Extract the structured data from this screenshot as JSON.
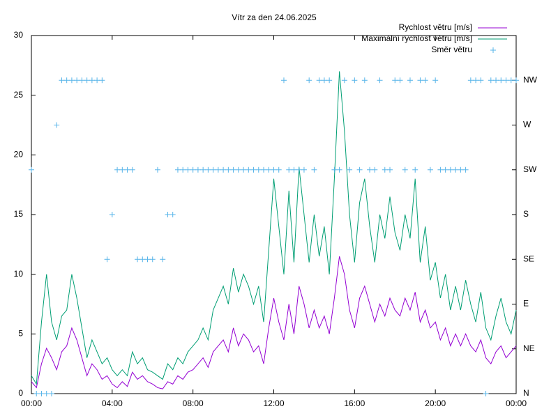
{
  "chart_data": {
    "type": "line",
    "title": "Vítr za den 24.06.2025",
    "x": [
      0,
      0.25,
      0.5,
      0.75,
      1,
      1.25,
      1.5,
      1.75,
      2,
      2.25,
      2.5,
      2.75,
      3,
      3.25,
      3.5,
      3.75,
      4,
      4.25,
      4.5,
      4.75,
      5,
      5.25,
      5.5,
      5.75,
      6,
      6.25,
      6.5,
      6.75,
      7,
      7.25,
      7.5,
      7.75,
      8,
      8.25,
      8.5,
      8.75,
      9,
      9.25,
      9.5,
      9.75,
      10,
      10.25,
      10.5,
      10.75,
      11,
      11.25,
      11.5,
      11.75,
      12,
      12.25,
      12.5,
      12.75,
      13,
      13.25,
      13.5,
      13.75,
      14,
      14.25,
      14.5,
      14.75,
      15,
      15.25,
      15.5,
      15.75,
      16,
      16.25,
      16.5,
      16.75,
      17,
      17.25,
      17.5,
      17.75,
      18,
      18.25,
      18.5,
      18.75,
      19,
      19.25,
      19.5,
      19.75,
      20,
      20.25,
      20.5,
      20.75,
      21,
      21.25,
      21.5,
      21.75,
      22,
      22.25,
      22.5,
      22.75,
      23,
      23.25,
      23.5,
      23.75,
      24
    ],
    "series": [
      {
        "name": "Rychlost větru [m/s]",
        "color": "#9400d3",
        "values": [
          1.0,
          0.5,
          2.5,
          3.8,
          3.0,
          2.0,
          3.5,
          4.0,
          5.5,
          4.5,
          3.0,
          1.5,
          2.5,
          2.0,
          1.2,
          1.5,
          0.8,
          0.5,
          1.0,
          0.6,
          1.8,
          1.2,
          1.5,
          1.0,
          0.8,
          0.5,
          0.4,
          1.0,
          0.8,
          1.5,
          1.2,
          1.8,
          2.0,
          2.5,
          3.0,
          2.2,
          3.5,
          4.0,
          4.5,
          3.5,
          5.5,
          4.0,
          5.0,
          4.5,
          3.5,
          4.0,
          2.5,
          5.5,
          8.0,
          6.0,
          4.5,
          7.5,
          5.0,
          9.0,
          7.5,
          5.5,
          7.0,
          5.5,
          6.5,
          5.0,
          8.0,
          11.5,
          10.0,
          7.0,
          5.5,
          8.0,
          9.0,
          7.5,
          6.0,
          7.5,
          6.5,
          8.0,
          7.0,
          6.5,
          8.0,
          7.0,
          8.5,
          6.0,
          7.0,
          5.5,
          6.0,
          4.5,
          5.5,
          4.0,
          5.0,
          4.0,
          5.0,
          4.0,
          3.5,
          4.5,
          3.0,
          2.5,
          3.5,
          4.0,
          3.0,
          3.5,
          4.0
        ]
      },
      {
        "name": "Maximální rychlost větru [m/s]",
        "color": "#009e73",
        "values": [
          1.5,
          0.8,
          6.0,
          10.0,
          6.0,
          4.5,
          6.5,
          7.0,
          10.0,
          8.0,
          5.5,
          3.0,
          4.5,
          3.5,
          2.5,
          3.0,
          2.0,
          1.5,
          2.0,
          1.5,
          3.5,
          2.5,
          3.0,
          2.0,
          1.8,
          1.5,
          1.2,
          2.5,
          2.0,
          3.0,
          2.5,
          3.5,
          4.0,
          4.5,
          5.5,
          4.5,
          7.0,
          8.0,
          9.0,
          7.5,
          10.5,
          8.5,
          10.0,
          9.0,
          7.5,
          9.0,
          6.0,
          12.0,
          18.0,
          14.0,
          10.0,
          17.0,
          11.0,
          19.0,
          15.0,
          11.0,
          15.0,
          11.5,
          14.0,
          10.0,
          18.0,
          27.0,
          22.0,
          15.0,
          11.0,
          16.0,
          18.0,
          14.0,
          11.0,
          15.0,
          13.0,
          16.5,
          13.5,
          12.0,
          15.0,
          13.0,
          18.0,
          11.0,
          14.0,
          9.5,
          11.0,
          8.0,
          10.0,
          7.0,
          9.0,
          7.0,
          9.5,
          7.5,
          6.0,
          8.5,
          5.5,
          4.5,
          6.5,
          8.0,
          6.0,
          5.0,
          7.0
        ]
      },
      {
        "name": "Směr větru",
        "color": "#56b4e9",
        "type": "scatter",
        "axis": "y2",
        "values": [
          5,
          0,
          0,
          0,
          0,
          6,
          7,
          7,
          7,
          7,
          7,
          7,
          7,
          7,
          7,
          3,
          4,
          5,
          5,
          5,
          5,
          3,
          3,
          3,
          3,
          5,
          3,
          4,
          4,
          5,
          5,
          5,
          5,
          5,
          5,
          5,
          5,
          5,
          5,
          5,
          5,
          5,
          5,
          5,
          5,
          5,
          5,
          5,
          5,
          5,
          7,
          5,
          5,
          5,
          5,
          7,
          5,
          7,
          7,
          7,
          5,
          5,
          7,
          5,
          7,
          5,
          7,
          5,
          5,
          7,
          5,
          5,
          7,
          7,
          5,
          7,
          5,
          7,
          7,
          5,
          7,
          5,
          5,
          5,
          5,
          5,
          5,
          7,
          7,
          7,
          0,
          7,
          7,
          7,
          7,
          7,
          7
        ]
      }
    ],
    "xlim": [
      0,
      24
    ],
    "xticks": [
      {
        "value": 0,
        "label": "00:00"
      },
      {
        "value": 4,
        "label": "04:00"
      },
      {
        "value": 8,
        "label": "08:00"
      },
      {
        "value": 12,
        "label": "12:00"
      },
      {
        "value": 16,
        "label": "16:00"
      },
      {
        "value": 20,
        "label": "20:00"
      },
      {
        "value": 24,
        "label": "00:00"
      }
    ],
    "ylim": [
      0,
      30
    ],
    "yticks": [
      0,
      5,
      10,
      15,
      20,
      25,
      30
    ],
    "y2lim": [
      0,
      8
    ],
    "y2ticks": [
      {
        "value": 0,
        "label": "N"
      },
      {
        "value": 1,
        "label": "NE"
      },
      {
        "value": 2,
        "label": "E"
      },
      {
        "value": 3,
        "label": "SE"
      },
      {
        "value": 4,
        "label": "S"
      },
      {
        "value": 5,
        "label": "SW"
      },
      {
        "value": 6,
        "label": "W"
      },
      {
        "value": 7,
        "label": "NW"
      }
    ],
    "legend": "top-right"
  }
}
